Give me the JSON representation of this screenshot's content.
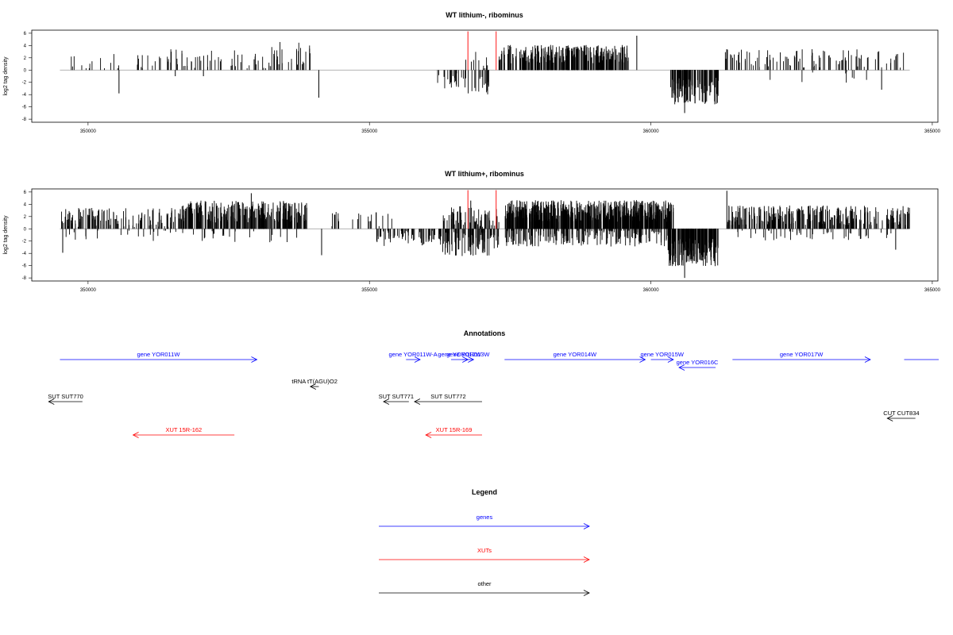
{
  "chart_data": [
    {
      "type": "bar",
      "title": "WT lithium-, ribominus",
      "xlabel": "",
      "ylabel": "log2 tag density",
      "xlim": [
        349000,
        365100
      ],
      "ylim": [
        -8.5,
        6.5
      ],
      "xticks": [
        350000,
        355000,
        360000,
        365000
      ],
      "yticks": [
        6,
        4,
        2,
        0,
        -2,
        -4,
        -6,
        -8
      ],
      "grid": false,
      "baseline_range": [
        349500,
        364600
      ],
      "highlight_markers": [
        356750,
        357250
      ],
      "regions": [
        {
          "from": 349600,
          "to": 350800,
          "mean": 1.5,
          "amp": 1.6,
          "density": 0.012,
          "sign": 1
        },
        {
          "from": 350800,
          "to": 353200,
          "mean": 1.8,
          "amp": 1.6,
          "density": 0.025,
          "sign": 1
        },
        {
          "from": 353200,
          "to": 353950,
          "mean": 2.6,
          "amp": 2.0,
          "density": 0.04,
          "sign": 1
        },
        {
          "from": 356200,
          "to": 356700,
          "mean": -1.6,
          "amp": 1.4,
          "density": 0.04,
          "sign": -1
        },
        {
          "from": 356700,
          "to": 357100,
          "mean": 1.5,
          "amp": 1.5,
          "density": 0.03,
          "sign": 1
        },
        {
          "from": 356700,
          "to": 357150,
          "mean": -2.5,
          "amp": 1.5,
          "density": 0.04,
          "sign": -1
        },
        {
          "from": 357300,
          "to": 359600,
          "mean": 2.6,
          "amp": 1.5,
          "density": 0.12,
          "sign": 1
        },
        {
          "from": 360350,
          "to": 361200,
          "mean": -3.4,
          "amp": 2.2,
          "density": 0.15,
          "sign": -1
        },
        {
          "from": 361300,
          "to": 364500,
          "mean": 1.9,
          "amp": 1.5,
          "density": 0.03,
          "sign": 1
        },
        {
          "from": 362000,
          "to": 364200,
          "mean": -1.2,
          "amp": 1.2,
          "density": 0.004,
          "sign": -1
        }
      ],
      "spikes": [
        {
          "x": 350550,
          "y": -3.8
        },
        {
          "x": 354100,
          "y": -4.5
        },
        {
          "x": 351550,
          "y": -1.0
        },
        {
          "x": 359750,
          "y": 5.6
        },
        {
          "x": 360600,
          "y": -7.0
        },
        {
          "x": 364100,
          "y": -3.2
        },
        {
          "x": 352050,
          "y": -1.0
        }
      ]
    },
    {
      "type": "bar",
      "title": "WT lithium+, ribominus",
      "xlabel": "",
      "ylabel": "log2 tag density",
      "xlim": [
        349000,
        365100
      ],
      "ylim": [
        -8.5,
        6.5
      ],
      "xticks": [
        350000,
        355000,
        360000,
        365000
      ],
      "yticks": [
        6,
        4,
        2,
        0,
        -2,
        -4,
        -6,
        -8
      ],
      "grid": false,
      "baseline_range": [
        349500,
        364600
      ],
      "highlight_markers": [
        356750,
        357250
      ],
      "regions": [
        {
          "from": 349500,
          "to": 351600,
          "mean": 1.8,
          "amp": 1.6,
          "density": 0.06,
          "sign": 1
        },
        {
          "from": 349500,
          "to": 351600,
          "mean": -1.0,
          "amp": 1.0,
          "density": 0.01,
          "sign": -1
        },
        {
          "from": 351600,
          "to": 353900,
          "mean": 2.8,
          "amp": 1.8,
          "density": 0.12,
          "sign": 1
        },
        {
          "from": 351600,
          "to": 353900,
          "mean": -1.2,
          "amp": 1.0,
          "density": 0.01,
          "sign": -1
        },
        {
          "from": 354300,
          "to": 355400,
          "mean": 1.5,
          "amp": 1.3,
          "density": 0.02,
          "sign": 1
        },
        {
          "from": 355100,
          "to": 356300,
          "mean": -1.5,
          "amp": 1.3,
          "density": 0.06,
          "sign": -1
        },
        {
          "from": 356300,
          "to": 357300,
          "mean": 2.0,
          "amp": 1.7,
          "density": 0.07,
          "sign": 1
        },
        {
          "from": 356300,
          "to": 357300,
          "mean": -2.5,
          "amp": 2.0,
          "density": 0.1,
          "sign": -1
        },
        {
          "from": 357400,
          "to": 360400,
          "mean": 2.9,
          "amp": 1.8,
          "density": 0.22,
          "sign": 1
        },
        {
          "from": 357400,
          "to": 360300,
          "mean": -1.5,
          "amp": 1.4,
          "density": 0.07,
          "sign": -1
        },
        {
          "from": 360300,
          "to": 361200,
          "mean": -3.8,
          "amp": 2.3,
          "density": 0.2,
          "sign": -1
        },
        {
          "from": 361350,
          "to": 364600,
          "mean": 2.2,
          "amp": 1.6,
          "density": 0.09,
          "sign": 1
        },
        {
          "from": 361400,
          "to": 364500,
          "mean": -1.0,
          "amp": 0.9,
          "density": 0.015,
          "sign": -1
        }
      ],
      "spikes": [
        {
          "x": 349550,
          "y": -3.9
        },
        {
          "x": 354150,
          "y": -4.3
        },
        {
          "x": 352900,
          "y": 5.8
        },
        {
          "x": 361350,
          "y": 6.2
        },
        {
          "x": 360600,
          "y": -8.0
        },
        {
          "x": 364350,
          "y": -3.4
        },
        {
          "x": 356800,
          "y": 4.6
        }
      ]
    }
  ],
  "annotations": {
    "title": "Annotations",
    "items": [
      {
        "label": "gene YOR011W",
        "start": 349500,
        "end": 353000,
        "strand": "+",
        "kind": "gene",
        "row": 0
      },
      {
        "label": "gene YOR011W-A",
        "start": 355650,
        "end": 355900,
        "strand": "+",
        "kind": "gene",
        "row": 0
      },
      {
        "label": "gene YOR012W",
        "start": 356450,
        "end": 356750,
        "strand": "+",
        "kind": "gene",
        "row": 0
      },
      {
        "label": "gene YOR013W",
        "start": 356650,
        "end": 356850,
        "strand": "+",
        "kind": "gene",
        "row": 0
      },
      {
        "label": "gene YOR014W",
        "start": 357400,
        "end": 359900,
        "strand": "+",
        "kind": "gene",
        "row": 0
      },
      {
        "label": "gene YOR015W",
        "start": 360000,
        "end": 360400,
        "strand": "+",
        "kind": "gene",
        "row": 0
      },
      {
        "label": "gene YOR016C",
        "start": 360500,
        "end": 361150,
        "strand": "-",
        "kind": "gene",
        "row": 1
      },
      {
        "label": "gene YOR017W",
        "start": 361450,
        "end": 363900,
        "strand": "+",
        "kind": "gene",
        "row": 0
      },
      {
        "label": "tRNA tT(AGU)O2",
        "start": 353950,
        "end": 354100,
        "strand": "-",
        "kind": "other",
        "row": 2
      },
      {
        "label": "SUT SUT770",
        "start": 349300,
        "end": 349900,
        "strand": "-",
        "kind": "other",
        "row": 3
      },
      {
        "label": "SUT SUT771",
        "start": 355250,
        "end": 355700,
        "strand": "-",
        "kind": "other",
        "row": 3
      },
      {
        "label": "SUT SUT772",
        "start": 355800,
        "end": 357000,
        "strand": "-",
        "kind": "other",
        "row": 3
      },
      {
        "label": "CUT CUT834",
        "start": 364200,
        "end": 364700,
        "strand": "-",
        "kind": "other",
        "row": 4
      },
      {
        "label": "XUT 15R-162",
        "start": 350800,
        "end": 352600,
        "strand": "-",
        "kind": "xut",
        "row": 5
      },
      {
        "label": "XUT 15R-169",
        "start": 356000,
        "end": 357000,
        "strand": "-",
        "kind": "xut",
        "row": 5
      }
    ],
    "partial": [
      {
        "start": 364500,
        "end": 365300,
        "kind": "gene",
        "row": 0
      }
    ]
  },
  "legend": {
    "title": "Legend",
    "items": [
      {
        "label": "genes",
        "color": "#0000ff"
      },
      {
        "label": "XUTs",
        "color": "#ff0000"
      },
      {
        "label": "other",
        "color": "#000000"
      }
    ]
  },
  "colors": {
    "gene": "#0000ff",
    "xut": "#ff0000",
    "other": "#000000",
    "marker": "#ff3b3b",
    "baseline": "#9a9a9a"
  }
}
